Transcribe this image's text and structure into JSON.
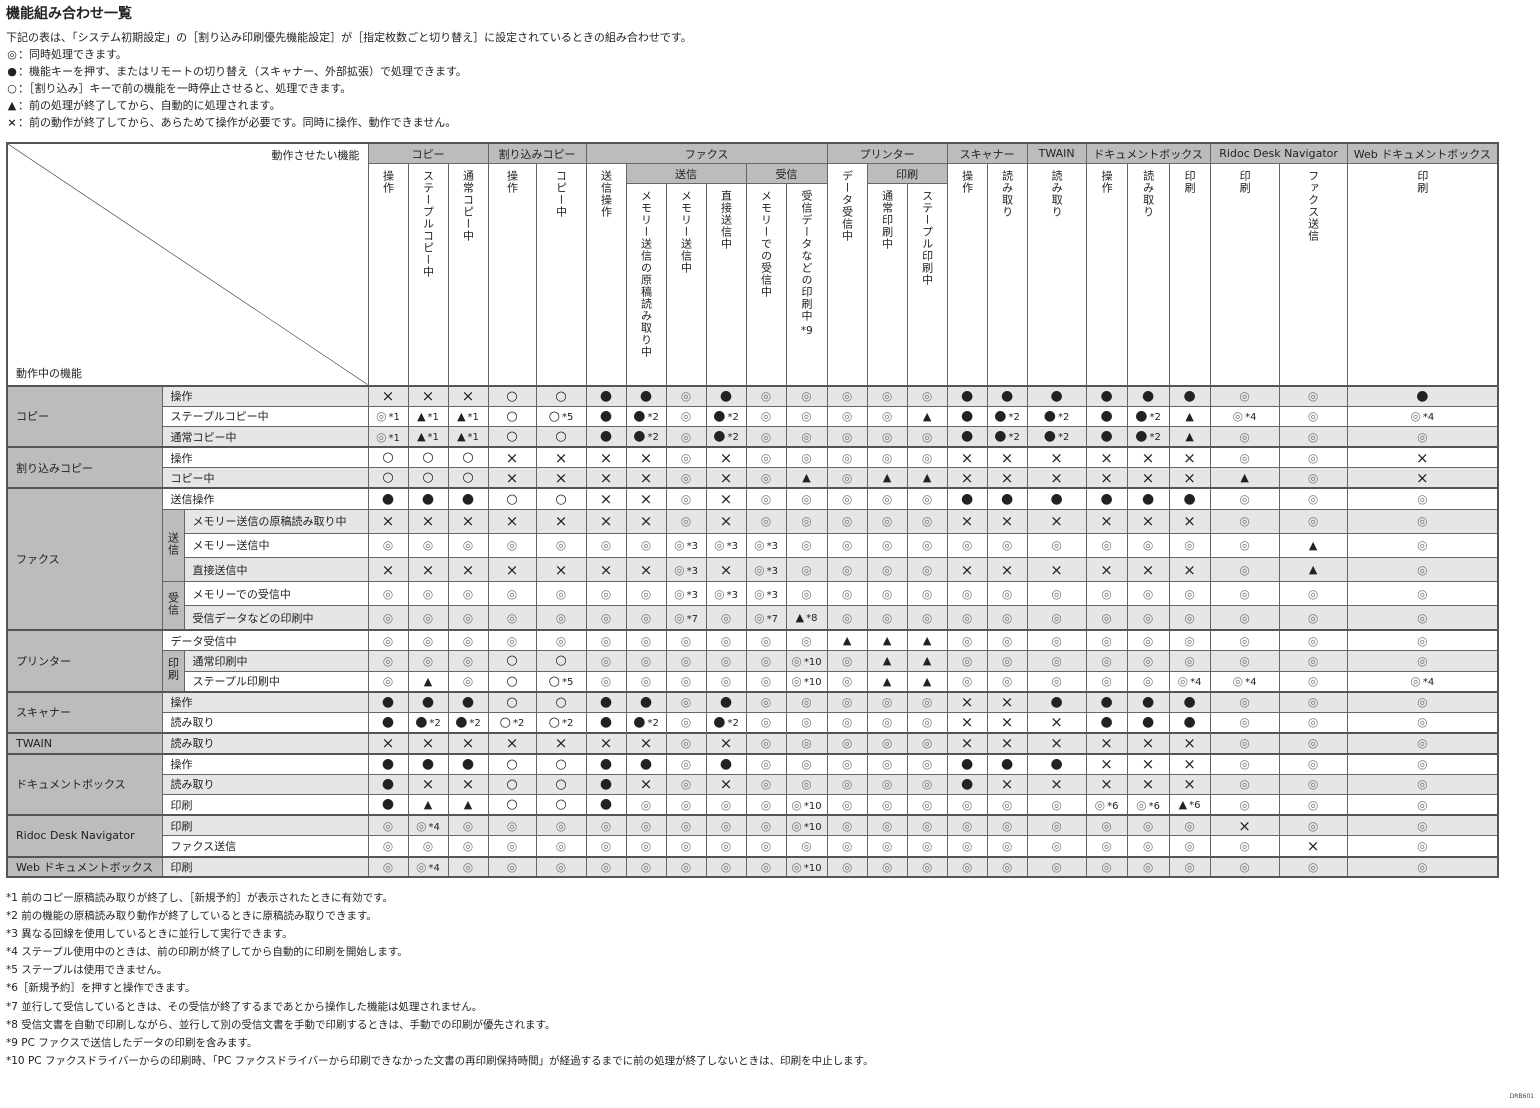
{
  "title": "機能組み合わせ一覧",
  "intro": "下記の表は、「システム初期設定」の［割り込み印刷優先機能設定］が［指定枚数ごと切り替え］に設定されているときの組み合わせです。",
  "legend": [
    {
      "symbol": "◎",
      "text": "：同時処理できます。"
    },
    {
      "symbol": "●",
      "text": "：機能キーを押す、またはリモートの切り替え（スキャナー、外部拡張）で処理できます。"
    },
    {
      "symbol": "○",
      "text": "：［割り込み］キーで前の機能を一時停止させると、処理できます。"
    },
    {
      "symbol": "▲",
      "text": "：前の処理が終了してから、自動的に処理されます。"
    },
    {
      "symbol": "×",
      "text": "：前の動作が終了してから、あらためて操作が必要です。同時に操作、動作できません。"
    }
  ],
  "table": {
    "corner_top": "動作させたい機能",
    "corner_bottom": "動作中の機能",
    "col_groups": {
      "copy": "コピー",
      "interrupt": "割り込みコピー",
      "fax": "ファクス",
      "printer": "プリンター",
      "scanner": "スキャナー",
      "twain": "TWAIN",
      "docbox": "ドキュメントボックス",
      "ridoc": "Ridoc Desk Navigator",
      "web": "Web ドキュメントボックス"
    },
    "col_subgroups": {
      "send": "送信",
      "receive": "受信",
      "print": "印刷"
    },
    "columns": [
      "操作",
      "ステープルコピー中",
      "通常コピー中",
      "操作",
      "コピー中",
      "送信操作",
      "メモリー送信の原稿読み取り中",
      "メモリー送信中",
      "直接送信中",
      "メモリーでの受信中",
      "受信データなどの印刷中",
      "データ受信中",
      "通常印刷中",
      "ステープル印刷中",
      "操作",
      "読み取り",
      "読み取り",
      "操作",
      "読み取り",
      "印刷",
      "印刷",
      "ファクス送信",
      "印刷"
    ],
    "column_note_10": "*9",
    "row_groups": [
      {
        "label": "コピー",
        "rows": [
          {
            "label": "操作",
            "cells": [
              "×",
              "×",
              "×",
              "○",
              "○",
              "●",
              "●",
              "◎",
              "●",
              "◎",
              "◎",
              "◎",
              "◎",
              "◎",
              "●",
              "●",
              "●",
              "●",
              "●",
              "●",
              "◎",
              "◎",
              "●"
            ]
          },
          {
            "label": "ステープルコピー中",
            "cells": [
              "◎*1",
              "▲*1",
              "▲*1",
              "○",
              "○*5",
              "●",
              "●*2",
              "◎",
              "●*2",
              "◎",
              "◎",
              "◎",
              "◎",
              "▲",
              "●",
              "●*2",
              "●*2",
              "●",
              "●*2",
              "▲",
              "◎*4",
              "◎",
              "◎*4"
            ]
          },
          {
            "label": "通常コピー中",
            "cells": [
              "◎*1",
              "▲*1",
              "▲*1",
              "○",
              "○",
              "●",
              "●*2",
              "◎",
              "●*2",
              "◎",
              "◎",
              "◎",
              "◎",
              "◎",
              "●",
              "●*2",
              "●*2",
              "●",
              "●*2",
              "▲",
              "◎",
              "◎",
              "◎"
            ]
          }
        ]
      },
      {
        "label": "割り込みコピー",
        "rows": [
          {
            "label": "操作",
            "cells": [
              "○",
              "○",
              "○",
              "×",
              "×",
              "×",
              "×",
              "◎",
              "×",
              "◎",
              "◎",
              "◎",
              "◎",
              "◎",
              "×",
              "×",
              "×",
              "×",
              "×",
              "×",
              "◎",
              "◎",
              "×"
            ]
          },
          {
            "label": "コピー中",
            "cells": [
              "○",
              "○",
              "○",
              "×",
              "×",
              "×",
              "×",
              "◎",
              "×",
              "◎",
              "▲",
              "◎",
              "▲",
              "▲",
              "×",
              "×",
              "×",
              "×",
              "×",
              "×",
              "▲",
              "◎",
              "×"
            ]
          }
        ]
      },
      {
        "label": "ファクス",
        "rows": [
          {
            "label": "送信操作",
            "cells": [
              "●",
              "●",
              "●",
              "○",
              "○",
              "×",
              "×",
              "◎",
              "×",
              "◎",
              "◎",
              "◎",
              "◎",
              "◎",
              "●",
              "●",
              "●",
              "●",
              "●",
              "●",
              "◎",
              "◎",
              "◎"
            ]
          },
          {
            "sub": "送信",
            "label": "メモリー送信の原稿読み取り中",
            "cells": [
              "×",
              "×",
              "×",
              "×",
              "×",
              "×",
              "×",
              "◎",
              "×",
              "◎",
              "◎",
              "◎",
              "◎",
              "◎",
              "×",
              "×",
              "×",
              "×",
              "×",
              "×",
              "◎",
              "◎",
              "◎"
            ]
          },
          {
            "sub": "送信",
            "label": "メモリー送信中",
            "cells": [
              "◎",
              "◎",
              "◎",
              "◎",
              "◎",
              "◎",
              "◎",
              "◎*3",
              "◎*3",
              "◎*3",
              "◎",
              "◎",
              "◎",
              "◎",
              "◎",
              "◎",
              "◎",
              "◎",
              "◎",
              "◎",
              "◎",
              "▲",
              "◎"
            ]
          },
          {
            "sub": "送信",
            "label": "直接送信中",
            "cells": [
              "×",
              "×",
              "×",
              "×",
              "×",
              "×",
              "×",
              "◎*3",
              "×",
              "◎*3",
              "◎",
              "◎",
              "◎",
              "◎",
              "×",
              "×",
              "×",
              "×",
              "×",
              "×",
              "◎",
              "▲",
              "◎"
            ]
          },
          {
            "sub": "受信",
            "label": "メモリーでの受信中",
            "cells": [
              "◎",
              "◎",
              "◎",
              "◎",
              "◎",
              "◎",
              "◎",
              "◎*3",
              "◎*3",
              "◎*3",
              "◎",
              "◎",
              "◎",
              "◎",
              "◎",
              "◎",
              "◎",
              "◎",
              "◎",
              "◎",
              "◎",
              "◎",
              "◎"
            ]
          },
          {
            "sub": "受信",
            "label": "受信データなどの印刷中",
            "cells": [
              "◎",
              "◎",
              "◎",
              "◎",
              "◎",
              "◎",
              "◎",
              "◎*7",
              "◎",
              "◎*7",
              "▲*8",
              "◎",
              "◎",
              "◎",
              "◎",
              "◎",
              "◎",
              "◎",
              "◎",
              "◎",
              "◎",
              "◎",
              "◎"
            ]
          }
        ]
      },
      {
        "label": "プリンター",
        "rows": [
          {
            "label": "データ受信中",
            "cells": [
              "◎",
              "◎",
              "◎",
              "◎",
              "◎",
              "◎",
              "◎",
              "◎",
              "◎",
              "◎",
              "◎",
              "▲",
              "▲",
              "▲",
              "◎",
              "◎",
              "◎",
              "◎",
              "◎",
              "◎",
              "◎",
              "◎",
              "◎"
            ]
          },
          {
            "sub": "印刷",
            "label": "通常印刷中",
            "cells": [
              "◎",
              "◎",
              "◎",
              "○",
              "○",
              "◎",
              "◎",
              "◎",
              "◎",
              "◎",
              "◎*10",
              "◎",
              "▲",
              "▲",
              "◎",
              "◎",
              "◎",
              "◎",
              "◎",
              "◎",
              "◎",
              "◎",
              "◎"
            ]
          },
          {
            "sub": "印刷",
            "label": "ステープル印刷中",
            "cells": [
              "◎",
              "▲",
              "◎",
              "○",
              "○*5",
              "◎",
              "◎",
              "◎",
              "◎",
              "◎",
              "◎*10",
              "◎",
              "▲",
              "▲",
              "◎",
              "◎",
              "◎",
              "◎",
              "◎",
              "◎*4",
              "◎*4",
              "◎",
              "◎*4"
            ]
          }
        ]
      },
      {
        "label": "スキャナー",
        "rows": [
          {
            "label": "操作",
            "cells": [
              "●",
              "●",
              "●",
              "○",
              "○",
              "●",
              "●",
              "◎",
              "●",
              "◎",
              "◎",
              "◎",
              "◎",
              "◎",
              "×",
              "×",
              "●",
              "●",
              "●",
              "●",
              "◎",
              "◎",
              "◎"
            ]
          },
          {
            "label": "読み取り",
            "cells": [
              "●",
              "●*2",
              "●*2",
              "○*2",
              "○*2",
              "●",
              "●*2",
              "◎",
              "●*2",
              "◎",
              "◎",
              "◎",
              "◎",
              "◎",
              "×",
              "×",
              "×",
              "●",
              "●",
              "●",
              "◎",
              "◎",
              "◎"
            ]
          }
        ]
      },
      {
        "label": "TWAIN",
        "rows": [
          {
            "label": "読み取り",
            "cells": [
              "×",
              "×",
              "×",
              "×",
              "×",
              "×",
              "×",
              "◎",
              "×",
              "◎",
              "◎",
              "◎",
              "◎",
              "◎",
              "×",
              "×",
              "×",
              "×",
              "×",
              "×",
              "◎",
              "◎",
              "◎"
            ]
          }
        ]
      },
      {
        "label": "ドキュメントボックス",
        "rows": [
          {
            "label": "操作",
            "cells": [
              "●",
              "●",
              "●",
              "○",
              "○",
              "●",
              "●",
              "◎",
              "●",
              "◎",
              "◎",
              "◎",
              "◎",
              "◎",
              "●",
              "●",
              "●",
              "×",
              "×",
              "×",
              "◎",
              "◎",
              "◎"
            ]
          },
          {
            "label": "読み取り",
            "cells": [
              "●",
              "×",
              "×",
              "○",
              "○",
              "●",
              "×",
              "◎",
              "×",
              "◎",
              "◎",
              "◎",
              "◎",
              "◎",
              "●",
              "×",
              "×",
              "×",
              "×",
              "×",
              "◎",
              "◎",
              "◎"
            ]
          },
          {
            "label": "印刷",
            "cells": [
              "●",
              "▲",
              "▲",
              "○",
              "○",
              "●",
              "◎",
              "◎",
              "◎",
              "◎",
              "◎*10",
              "◎",
              "◎",
              "◎",
              "◎",
              "◎",
              "◎",
              "◎*6",
              "◎*6",
              "▲*6",
              "◎",
              "◎",
              "◎"
            ]
          }
        ]
      },
      {
        "label": "Ridoc Desk Navigator",
        "rows": [
          {
            "label": "印刷",
            "cells": [
              "◎",
              "◎*4",
              "◎",
              "◎",
              "◎",
              "◎",
              "◎",
              "◎",
              "◎",
              "◎",
              "◎*10",
              "◎",
              "◎",
              "◎",
              "◎",
              "◎",
              "◎",
              "◎",
              "◎",
              "◎",
              "×",
              "◎",
              "◎"
            ]
          },
          {
            "label": "ファクス送信",
            "cells": [
              "◎",
              "◎",
              "◎",
              "◎",
              "◎",
              "◎",
              "◎",
              "◎",
              "◎",
              "◎",
              "◎",
              "◎",
              "◎",
              "◎",
              "◎",
              "◎",
              "◎",
              "◎",
              "◎",
              "◎",
              "◎",
              "×",
              "◎"
            ]
          }
        ]
      },
      {
        "label": "Web ドキュメントボックス",
        "rows": [
          {
            "label": "印刷",
            "cells": [
              "◎",
              "◎*4",
              "◎",
              "◎",
              "◎",
              "◎",
              "◎",
              "◎",
              "◎",
              "◎",
              "◎*10",
              "◎",
              "◎",
              "◎",
              "◎",
              "◎",
              "◎",
              "◎",
              "◎",
              "◎",
              "◎",
              "◎",
              "◎"
            ]
          }
        ]
      }
    ]
  },
  "footnotes": [
    "*1 前のコピー原稿読み取りが終了し、［新規予約］が表示されたときに有効です。",
    "*2 前の機能の原稿読み取り動作が終了しているときに原稿読み取りできます。",
    "*3 異なる回線を使用しているときに並行して実行できます。",
    "*4 ステープル使用中のときは、前の印刷が終了してから自動的に印刷を開始します。",
    "*5 ステープルは使用できません。",
    "*6［新規予約］を押すと操作できます。",
    "*7 並行して受信しているときは、その受信が終了するまであとから操作した機能は処理されません。",
    "*8 受信文書を自動で印刷しながら、並行して別の受信文書を手動で印刷するときは、手動での印刷が優先されます。",
    "*9 PC ファクスで送信したデータの印刷を含みます。",
    "*10 PC ファクスドライバーからの印刷時、「PC ファクスドライバーから印刷できなかった文書の再印刷保持時間」が経過するまでに前の処理が終了しないときは、印刷を中止します。"
  ],
  "figure_code": "DRB601"
}
